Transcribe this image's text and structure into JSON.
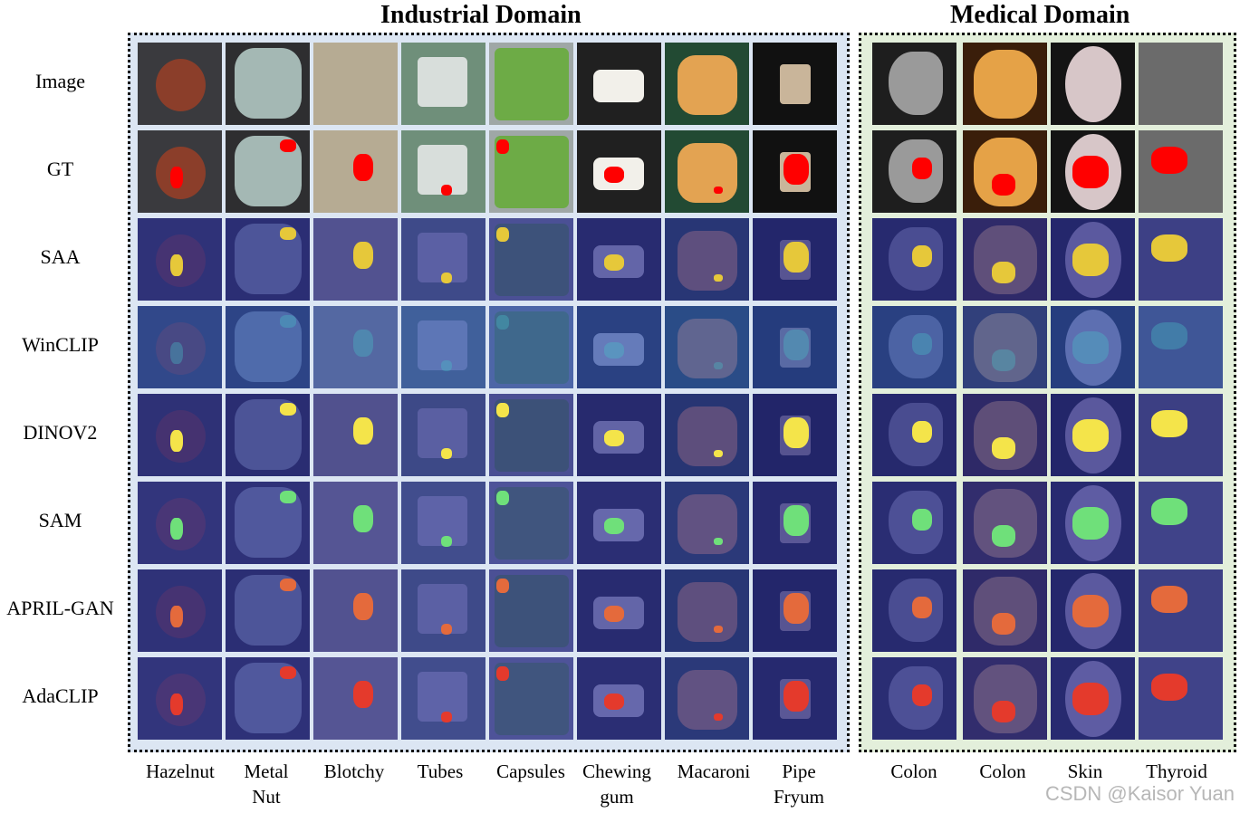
{
  "titles": {
    "industrial": "Industrial Domain",
    "medical": "Medical Domain"
  },
  "rows": [
    "Image",
    "GT",
    "SAA",
    "WinCLIP",
    "DINOV2",
    "SAM",
    "APRIL-GAN",
    "AdaCLIP"
  ],
  "industrial_columns": [
    {
      "line1": "Hazelnut",
      "line2": ""
    },
    {
      "line1": "Metal",
      "line2": "Nut"
    },
    {
      "line1": "Blotchy",
      "line2": ""
    },
    {
      "line1": "Tubes",
      "line2": ""
    },
    {
      "line1": "Capsules",
      "line2": ""
    },
    {
      "line1": "Chewing",
      "line2": "gum"
    },
    {
      "line1": "Macaroni",
      "line2": ""
    },
    {
      "line1": "Pipe",
      "line2": "Fryum"
    }
  ],
  "medical_columns": [
    {
      "line1": "Colon",
      "line2": ""
    },
    {
      "line1": "Colon",
      "line2": ""
    },
    {
      "line1": "Skin",
      "line2": ""
    },
    {
      "line1": "Thyroid",
      "line2": ""
    }
  ],
  "watermark": "CSDN @Kaisor Yuan",
  "colors": {
    "industrial_panel_bg": "#dce6f3",
    "medical_panel_bg": "#e3efdb",
    "anomaly_red": "#ff0000",
    "heatmap_base": "#2b2f8f"
  }
}
